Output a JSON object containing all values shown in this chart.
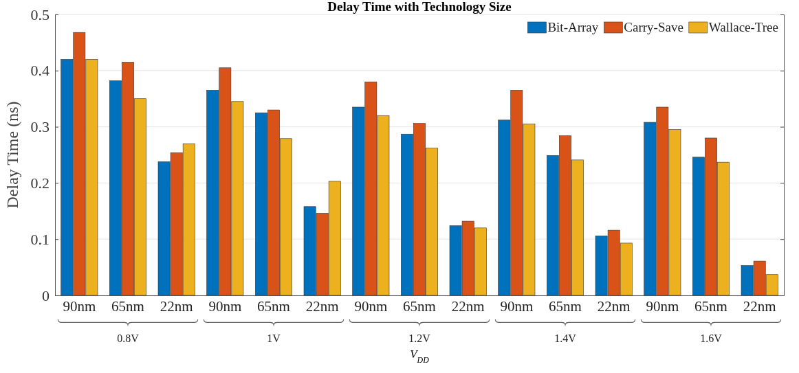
{
  "chart_data": {
    "type": "bar",
    "title": "Delay Time with Technology Size",
    "xlabel": "V$_{DD}$",
    "ylabel": "Delay Time (ns)",
    "categories": [
      "90nm",
      "65nm",
      "22nm",
      "90nm",
      "65nm",
      "22nm",
      "90nm",
      "65nm",
      "22nm",
      "90nm",
      "65nm",
      "22nm",
      "90nm",
      "65nm",
      "22nm"
    ],
    "annotations": [
      "0.8V",
      "1V",
      "1.2V",
      "1.4V",
      "1.6V"
    ],
    "series": [
      {
        "name": "Bit-Array",
        "color": "#0072bd",
        "values": [
          0.42,
          0.382,
          0.238,
          0.365,
          0.325,
          0.158,
          0.335,
          0.287,
          0.124,
          0.312,
          0.249,
          0.106,
          0.308,
          0.246,
          0.053
        ]
      },
      {
        "name": "Carry-Save",
        "color": "#d95319",
        "values": [
          0.468,
          0.415,
          0.254,
          0.405,
          0.33,
          0.146,
          0.38,
          0.306,
          0.132,
          0.365,
          0.284,
          0.116,
          0.335,
          0.28,
          0.061
        ]
      },
      {
        "name": "Wallace-Tree",
        "color": "#edb120",
        "values": [
          0.42,
          0.35,
          0.27,
          0.345,
          0.279,
          0.203,
          0.32,
          0.262,
          0.12,
          0.305,
          0.241,
          0.093,
          0.295,
          0.237,
          0.037
        ]
      }
    ],
    "ylim": [
      0,
      0.5
    ],
    "yticks": [
      0,
      0.1,
      0.2,
      0.3,
      0.4,
      0.5
    ],
    "grid": "y",
    "legend": "top right"
  }
}
